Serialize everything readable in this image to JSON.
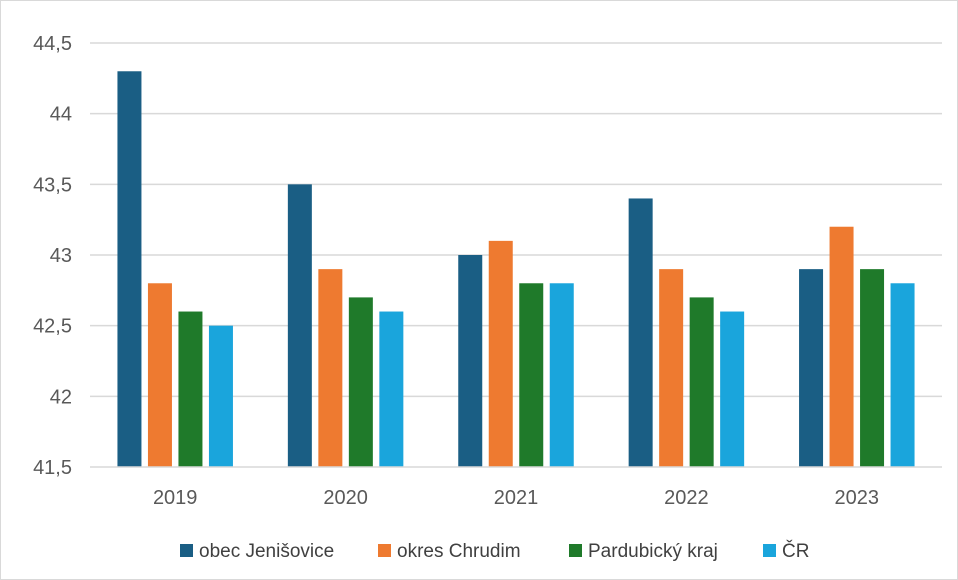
{
  "chart_data": {
    "type": "bar",
    "categories": [
      "2019",
      "2020",
      "2021",
      "2022",
      "2023"
    ],
    "series": [
      {
        "name": "obec Jenišovice",
        "values": [
          44.3,
          43.5,
          43.0,
          43.4,
          42.9
        ],
        "color": "#1a5e84"
      },
      {
        "name": "okres Chrudim",
        "values": [
          42.8,
          42.9,
          43.1,
          42.9,
          43.2
        ],
        "color": "#ee7a30"
      },
      {
        "name": "Pardubický kraj",
        "values": [
          42.6,
          42.7,
          42.8,
          42.7,
          42.9
        ],
        "color": "#1f7a2a"
      },
      {
        "name": "ČR",
        "values": [
          42.5,
          42.6,
          42.8,
          42.6,
          42.8
        ],
        "color": "#1aa5dc"
      }
    ],
    "y_ticks": [
      "41,5",
      "42",
      "42,5",
      "43",
      "43,5",
      "44",
      "44,5"
    ],
    "ylim": [
      41.5,
      44.5
    ],
    "grid": true,
    "legend_position": "bottom"
  }
}
